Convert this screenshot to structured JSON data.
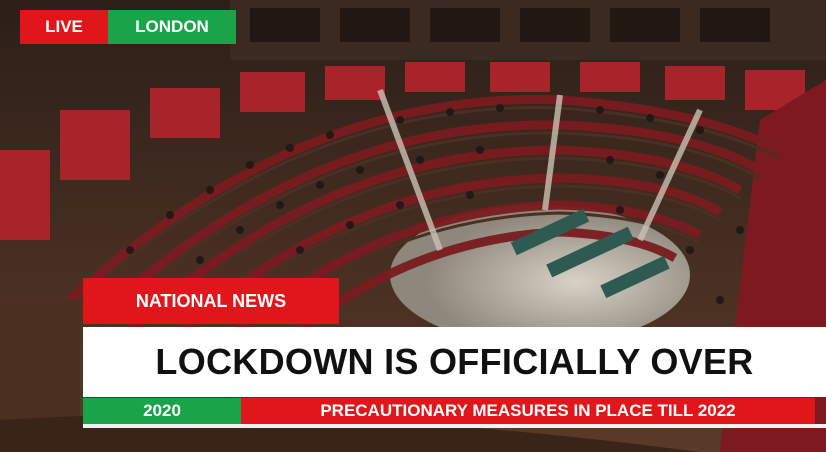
{
  "top_tags": {
    "live": "LIVE",
    "location": "LONDON"
  },
  "banner": {
    "section": "NATIONAL NEWS",
    "headline": "LOCKDOWN IS OFFICIALLY OVER",
    "year": "2020",
    "ticker": "PRECAUTIONARY MEASURES IN PLACE TILL 2022"
  },
  "colors": {
    "red": "#e0161a",
    "green": "#1aa44a",
    "white": "#ffffff",
    "seat_red": "#9e1f23",
    "wood": "#5b3a24"
  },
  "background_image": {
    "subject": "parliament chamber with semicircular rows of seated members"
  }
}
